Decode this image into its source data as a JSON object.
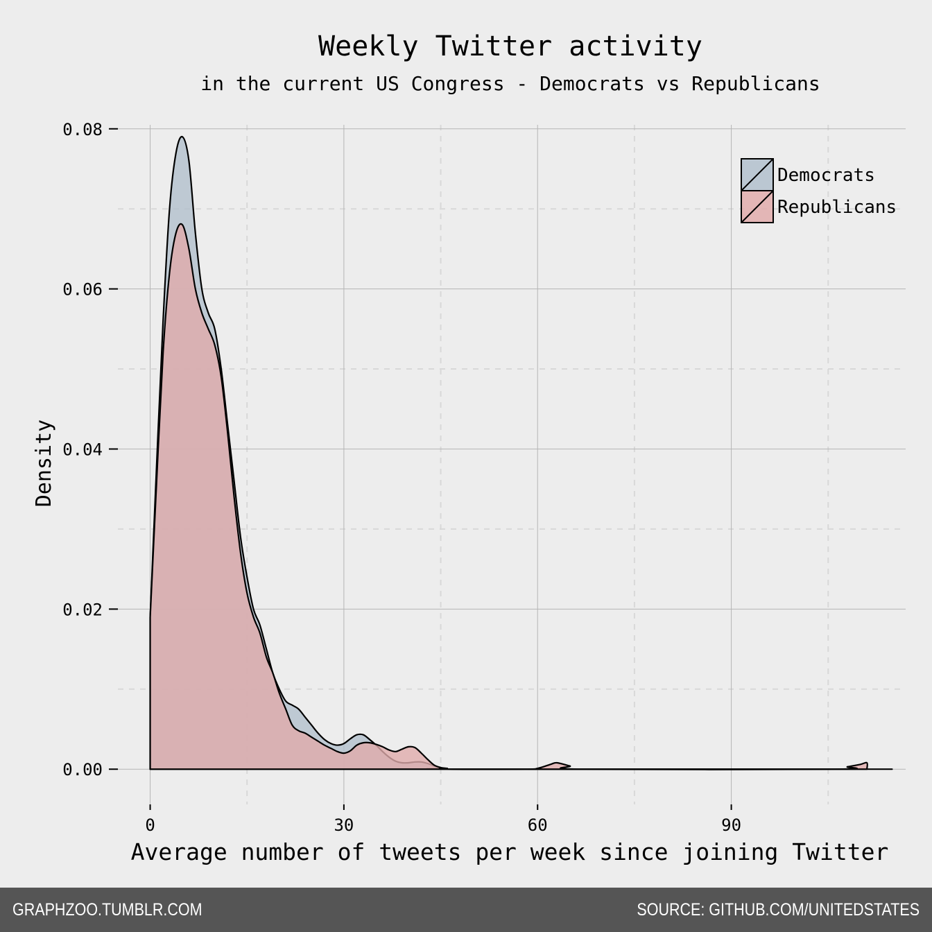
{
  "chart_data": {
    "type": "area",
    "title": "Weekly Twitter activity",
    "subtitle": "in the current US Congress - Democrats vs Republicans",
    "xlabel": "Average number of tweets per week since joining Twitter",
    "ylabel": "Density",
    "xlim": [
      -5,
      117
    ],
    "ylim": [
      -0.0044,
      0.0805
    ],
    "x_ticks": [
      0,
      30,
      60,
      90
    ],
    "x_tick_labels": [
      "0",
      "30",
      "60",
      "90"
    ],
    "y_ticks": [
      0,
      0.02,
      0.04,
      0.06,
      0.08
    ],
    "y_tick_labels": [
      "0.00",
      "0.02",
      "0.04",
      "0.06",
      "0.08"
    ],
    "grid": true,
    "legend_position": "top-right",
    "series": [
      {
        "name": "Democrats",
        "color": "#b2bfcc",
        "points": [
          [
            0,
            0.019
          ],
          [
            1,
            0.038
          ],
          [
            2,
            0.056
          ],
          [
            3,
            0.07
          ],
          [
            4,
            0.077
          ],
          [
            5,
            0.079
          ],
          [
            6,
            0.076
          ],
          [
            7,
            0.067
          ],
          [
            8,
            0.06
          ],
          [
            9,
            0.057
          ],
          [
            10,
            0.055
          ],
          [
            11,
            0.05
          ],
          [
            12,
            0.043
          ],
          [
            13,
            0.036
          ],
          [
            14,
            0.029
          ],
          [
            15,
            0.024
          ],
          [
            16,
            0.02
          ],
          [
            17,
            0.018
          ],
          [
            18,
            0.015
          ],
          [
            19,
            0.012
          ],
          [
            20,
            0.01
          ],
          [
            21,
            0.0085
          ],
          [
            22,
            0.008
          ],
          [
            23,
            0.0075
          ],
          [
            24,
            0.0065
          ],
          [
            25,
            0.0055
          ],
          [
            26,
            0.0045
          ],
          [
            27,
            0.0037
          ],
          [
            28,
            0.0032
          ],
          [
            29,
            0.003
          ],
          [
            30,
            0.0032
          ],
          [
            31,
            0.0038
          ],
          [
            32,
            0.0043
          ],
          [
            33,
            0.0043
          ],
          [
            34,
            0.0037
          ],
          [
            35,
            0.003
          ],
          [
            36,
            0.0022
          ],
          [
            37,
            0.0015
          ],
          [
            38,
            0.001
          ],
          [
            39,
            0.0008
          ],
          [
            40,
            0.0008
          ],
          [
            41,
            0.0009
          ],
          [
            42,
            0.0009
          ],
          [
            43,
            0.0007
          ],
          [
            44,
            0.0004
          ],
          [
            45,
            0.0002
          ],
          [
            46,
            0.0001
          ],
          [
            48,
            0
          ],
          [
            110,
            0
          ],
          [
            111,
            0
          ]
        ]
      },
      {
        "name": "Republicans",
        "color": "#e0abab",
        "points": [
          [
            0,
            0.019
          ],
          [
            1,
            0.036
          ],
          [
            2,
            0.052
          ],
          [
            3,
            0.062
          ],
          [
            4,
            0.067
          ],
          [
            5,
            0.068
          ],
          [
            6,
            0.065
          ],
          [
            7,
            0.06
          ],
          [
            8,
            0.057
          ],
          [
            9,
            0.055
          ],
          [
            10,
            0.053
          ],
          [
            11,
            0.049
          ],
          [
            12,
            0.042
          ],
          [
            13,
            0.034
          ],
          [
            14,
            0.027
          ],
          [
            15,
            0.022
          ],
          [
            16,
            0.019
          ],
          [
            17,
            0.017
          ],
          [
            18,
            0.014
          ],
          [
            19,
            0.012
          ],
          [
            20,
            0.0095
          ],
          [
            21,
            0.0075
          ],
          [
            22,
            0.0055
          ],
          [
            23,
            0.0048
          ],
          [
            24,
            0.0045
          ],
          [
            25,
            0.004
          ],
          [
            26,
            0.0035
          ],
          [
            27,
            0.003
          ],
          [
            28,
            0.0026
          ],
          [
            29,
            0.0022
          ],
          [
            30,
            0.002
          ],
          [
            31,
            0.0023
          ],
          [
            32,
            0.003
          ],
          [
            33,
            0.0033
          ],
          [
            34,
            0.0033
          ],
          [
            35,
            0.0031
          ],
          [
            36,
            0.0028
          ],
          [
            37,
            0.0024
          ],
          [
            38,
            0.0022
          ],
          [
            39,
            0.0025
          ],
          [
            40,
            0.0028
          ],
          [
            41,
            0.0027
          ],
          [
            42,
            0.002
          ],
          [
            43,
            0.0012
          ],
          [
            44,
            0.0005
          ],
          [
            45,
            0.0002
          ],
          [
            46,
            0
          ],
          [
            58,
            0
          ],
          [
            60,
            0.0001
          ],
          [
            62,
            0.0006
          ],
          [
            63,
            0.0008
          ],
          [
            65,
            0.0004
          ],
          [
            67,
            0
          ],
          [
            106,
            0
          ],
          [
            108,
            0.0003
          ],
          [
            110,
            0.0006
          ],
          [
            111,
            0.0008
          ],
          [
            111,
            0
          ]
        ]
      }
    ]
  },
  "footer": {
    "left": "GRAPHZOO.TUMBLR.COM",
    "right": "SOURCE: GITHUB.COM/UNITEDSTATES"
  }
}
